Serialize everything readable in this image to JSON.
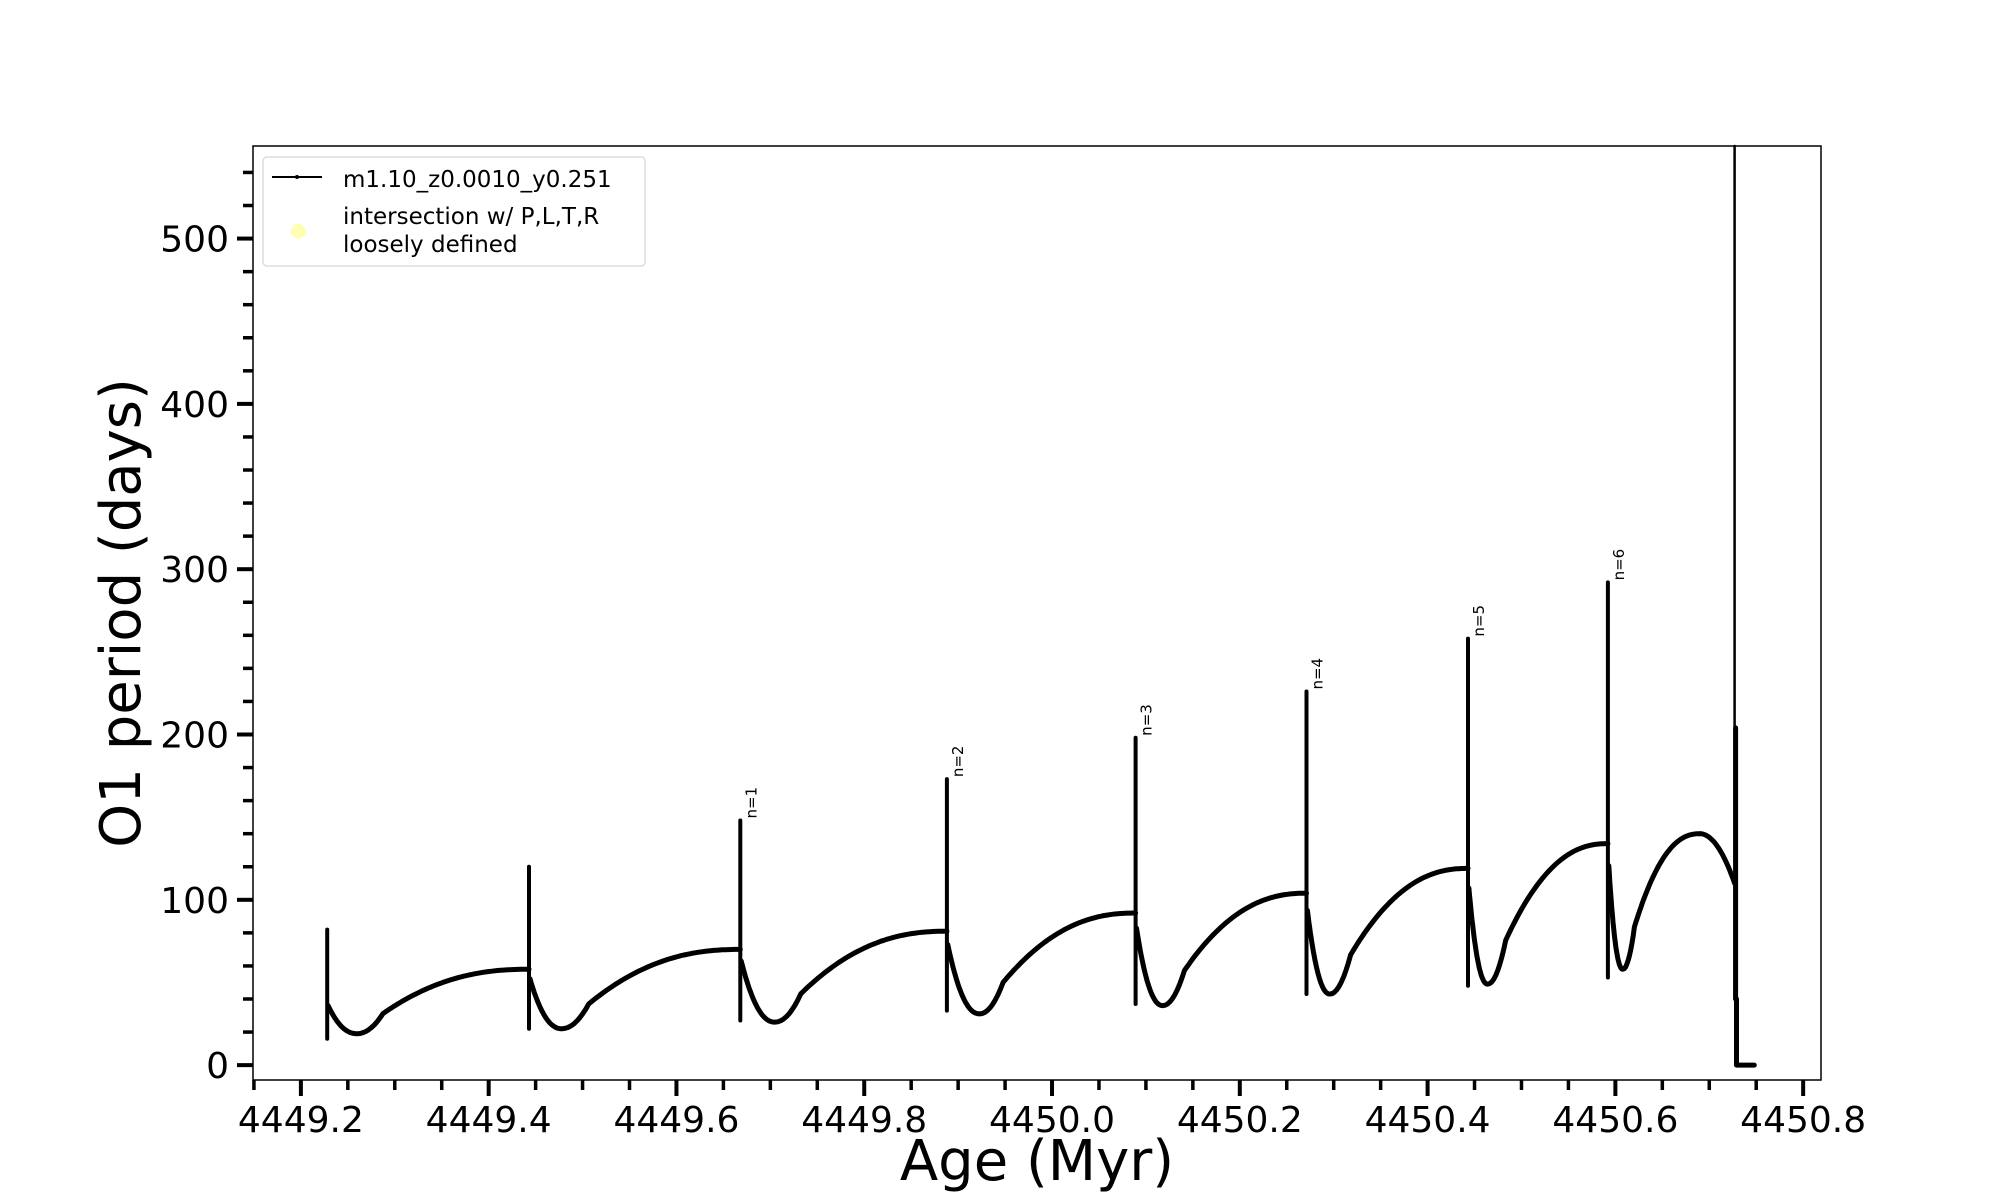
{
  "chart_data": {
    "type": "line",
    "title": "",
    "xlabel": "Age (Myr)",
    "ylabel": "O1 period (days)",
    "xlim": [
      4449.149,
      4450.819
    ],
    "ylim": [
      -9,
      556
    ],
    "x_ticks": [
      4449.2,
      4449.4,
      4449.6,
      4449.8,
      4450.0,
      4450.2,
      4450.4,
      4450.6,
      4450.8
    ],
    "x_tick_labels": [
      "4449.2",
      "4449.4",
      "4449.6",
      "4449.8",
      "4450.0",
      "4450.2",
      "4450.4",
      "4450.6",
      "4450.8"
    ],
    "x_minor_step": 0.05,
    "y_ticks": [
      0,
      100,
      200,
      300,
      400,
      500
    ],
    "y_tick_labels": [
      "0",
      "100",
      "200",
      "300",
      "400",
      "500"
    ],
    "y_minor_step": 20,
    "grid": false,
    "legend": {
      "placement": "top-left",
      "entries": [
        {
          "label": "m1.10_z0.0010_y0.251",
          "marker": "line",
          "color": "#000000"
        },
        {
          "label_lines": [
            "intersection w/ P,L,T,R",
            "loosely defined"
          ],
          "marker": "circle",
          "color": "#ffffb3"
        }
      ]
    },
    "series": [
      {
        "name": "m1.10_z0.0010_y0.251",
        "color": "#000000",
        "start": {
          "x": 4449.225,
          "y": 40
        },
        "cycles": [
          {
            "pulse_age": 4449.228,
            "pre": 40,
            "peak": 82,
            "low": 16,
            "min_age": 4449.26,
            "min": 19,
            "label": ""
          },
          {
            "pulse_age": 4449.443,
            "pre": 58,
            "peak": 120,
            "low": 22,
            "min_age": 4449.478,
            "min": 22,
            "label": ""
          },
          {
            "pulse_age": 4449.668,
            "pre": 70,
            "peak": 148,
            "low": 27,
            "min_age": 4449.705,
            "min": 26,
            "label": "n=1"
          },
          {
            "pulse_age": 4449.888,
            "pre": 81,
            "peak": 173,
            "low": 33,
            "min_age": 4449.923,
            "min": 31,
            "label": "n=2"
          },
          {
            "pulse_age": 4450.089,
            "pre": 92,
            "peak": 198,
            "low": 37,
            "min_age": 4450.118,
            "min": 36,
            "label": "n=3"
          },
          {
            "pulse_age": 4450.271,
            "pre": 104,
            "peak": 226,
            "low": 43,
            "min_age": 4450.296,
            "min": 43,
            "label": "n=4"
          },
          {
            "pulse_age": 4450.443,
            "pre": 119,
            "peak": 258,
            "low": 48,
            "min_age": 4450.464,
            "min": 49,
            "label": "n=5"
          },
          {
            "pulse_age": 4450.592,
            "pre": 134,
            "peak": 292,
            "low": 53,
            "min_age": 4450.608,
            "min": 58,
            "label": "n=6"
          }
        ],
        "final": {
          "peak_age": 4450.69,
          "peak": 140,
          "drop_age": 4450.727,
          "drop_from": 110,
          "spike_top": 556,
          "spike2": 204,
          "low": 40,
          "end_age": 4450.748,
          "end": 0
        }
      }
    ]
  }
}
